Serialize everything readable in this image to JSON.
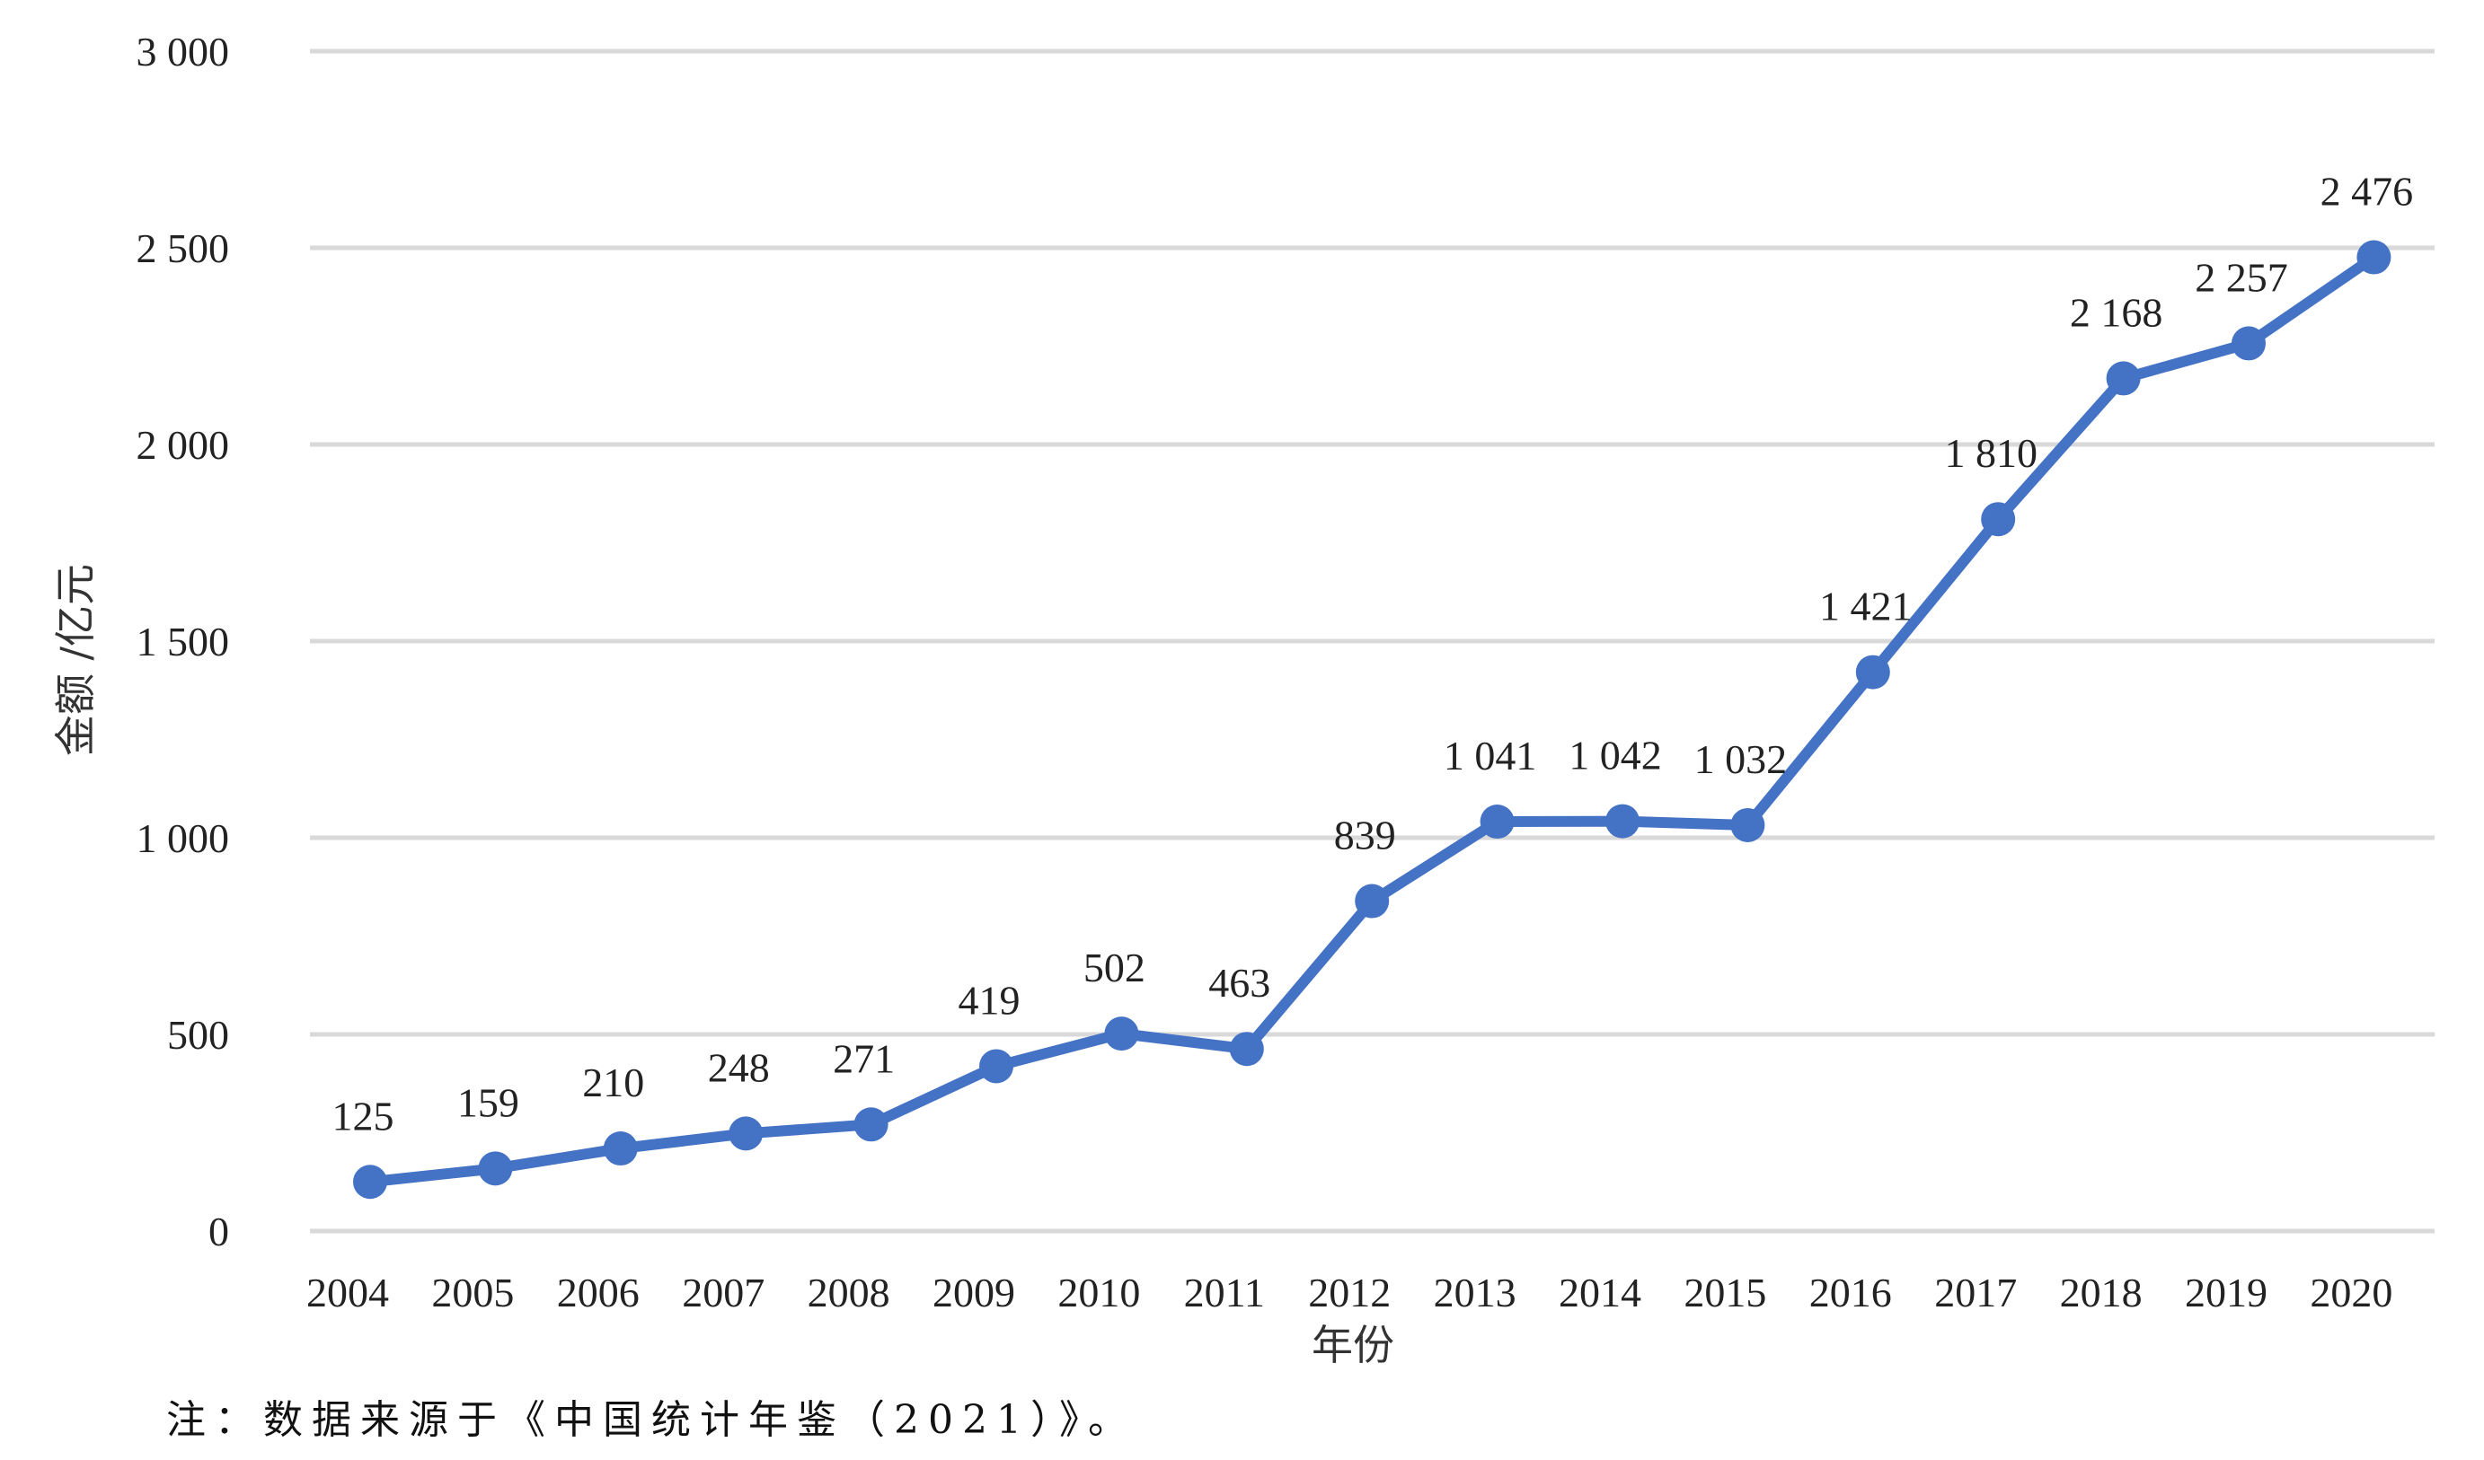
{
  "chart_data": {
    "type": "line",
    "title": "",
    "xlabel": "年份",
    "ylabel": "金额 /亿元",
    "ylim": [
      0,
      3000
    ],
    "yticks": [
      0,
      500,
      1000,
      1500,
      2000,
      2500,
      3000
    ],
    "ytick_labels": [
      "0",
      "500",
      "1 000",
      "1 500",
      "2 000",
      "2 500",
      "3 000"
    ],
    "grid": true,
    "legend": "none",
    "categories": [
      "2004",
      "2005",
      "2006",
      "2007",
      "2008",
      "2009",
      "2010",
      "2011",
      "2012",
      "2013",
      "2014",
      "2015",
      "2016",
      "2017",
      "2018",
      "2019",
      "2020"
    ],
    "series": [
      {
        "values": [
          125,
          159,
          210,
          248,
          271,
          419,
          502,
          463,
          839,
          1041,
          1042,
          1032,
          1421,
          1810,
          2168,
          2257,
          2476
        ],
        "labels": [
          "125",
          "159",
          "210",
          "248",
          "271",
          "419",
          "502",
          "463",
          "839",
          "1 041",
          "1 042",
          "1 032",
          "1 421",
          "1 810",
          "2 168",
          "2 257",
          "2 476"
        ],
        "color": "#4472C4"
      }
    ]
  },
  "note": "注：数据来源于《中国统计年鉴（2021）》。",
  "colors": {
    "line": "#4472C4",
    "grid": "#d9d9d9"
  }
}
